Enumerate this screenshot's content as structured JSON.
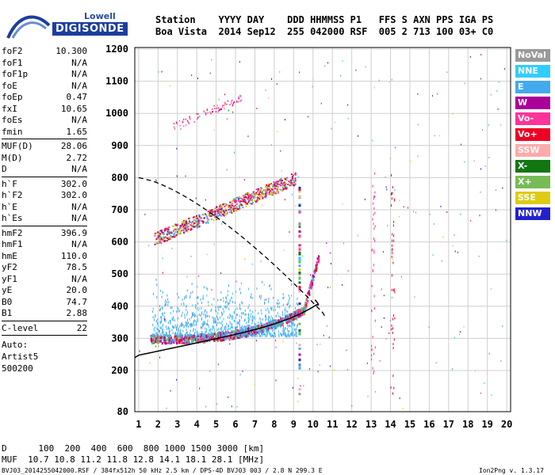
{
  "logo": {
    "line1": "Lowell",
    "line2": "DIGISONDE"
  },
  "header": {
    "line1": "Station    YYYY DAY    DDD HHMMSS P1   FFS S AXN PPS IGA PS",
    "line2": "Boa Vista  2014 Sep12  255 042000 RSF  005 2 713 100 03+ C0"
  },
  "params": {
    "group1": [
      {
        "name": "foF2",
        "value": "10.300"
      },
      {
        "name": "foF1",
        "value": "N/A"
      },
      {
        "name": "foF1p",
        "value": "N/A"
      },
      {
        "name": "foE",
        "value": "N/A"
      },
      {
        "name": "foEp",
        "value": "0.47"
      },
      {
        "name": "fxI",
        "value": "10.65"
      },
      {
        "name": "foEs",
        "value": "N/A"
      },
      {
        "name": "fmin",
        "value": "1.65"
      }
    ],
    "group2": [
      {
        "name": "MUF(D)",
        "value": "28.06"
      },
      {
        "name": "M(D)",
        "value": "2.72"
      },
      {
        "name": "D",
        "value": "N/A"
      }
    ],
    "group3": [
      {
        "name": "h`F",
        "value": "302.0"
      },
      {
        "name": "h`F2",
        "value": "302.0"
      },
      {
        "name": "h`E",
        "value": "N/A"
      },
      {
        "name": "h`Es",
        "value": "N/A"
      }
    ],
    "group4": [
      {
        "name": "hmF2",
        "value": "396.9"
      },
      {
        "name": "hmF1",
        "value": "N/A"
      },
      {
        "name": "hmE",
        "value": "110.0"
      },
      {
        "name": "yF2",
        "value": "78.5"
      },
      {
        "name": "yF1",
        "value": "N/A"
      },
      {
        "name": "yE",
        "value": "20.0"
      },
      {
        "name": "B0",
        "value": "74.7"
      },
      {
        "name": "B1",
        "value": "2.88"
      }
    ],
    "group5": [
      {
        "name": "C-level",
        "value": "22"
      }
    ],
    "auto": [
      "Auto:",
      "Artist5",
      "500200"
    ]
  },
  "legend": [
    {
      "label": "NoVal",
      "color": "#9a9a9a"
    },
    {
      "label": "NNE",
      "color": "#33ccff"
    },
    {
      "label": "E",
      "color": "#44aaee"
    },
    {
      "label": "W",
      "color": "#aa0099"
    },
    {
      "label": "Vo-",
      "color": "#ff3399"
    },
    {
      "label": "Vo+",
      "color": "#ee0022"
    },
    {
      "label": "SSW",
      "color": "#ffaaaa"
    },
    {
      "label": "X-",
      "color": "#117711"
    },
    {
      "label": "X+",
      "color": "#77bb55"
    },
    {
      "label": "SSE",
      "color": "#ddcc11"
    },
    {
      "label": "NNW",
      "color": "#2222cc"
    }
  ],
  "axes": {
    "x_ticks": [
      "1",
      "2",
      "3",
      "4",
      "5",
      "6",
      "7",
      "8",
      "9",
      "10",
      "11",
      "12",
      "13",
      "14",
      "15",
      "16",
      "17",
      "18",
      "19",
      "20"
    ],
    "y_ticks": [
      "80",
      "200",
      "300",
      "400",
      "500",
      "600",
      "700",
      "800",
      "900",
      "1000",
      "1100",
      "1200"
    ]
  },
  "footer": {
    "line1": "D      100  200  400  600  800 1000 1500 3000 [km]",
    "line2": "MUF  10.7 10.8 11.2 11.8 12.8 14.1 18.1 28.1 [MHz]",
    "line3": "BVJ03_2014255042000.RSF / 384fx512h 50 kHz 2.5 km / DPS-4D BVJ03 003 / 2.8 N 299.3 E",
    "version": "Ion2Png v. 1.3.17"
  }
}
